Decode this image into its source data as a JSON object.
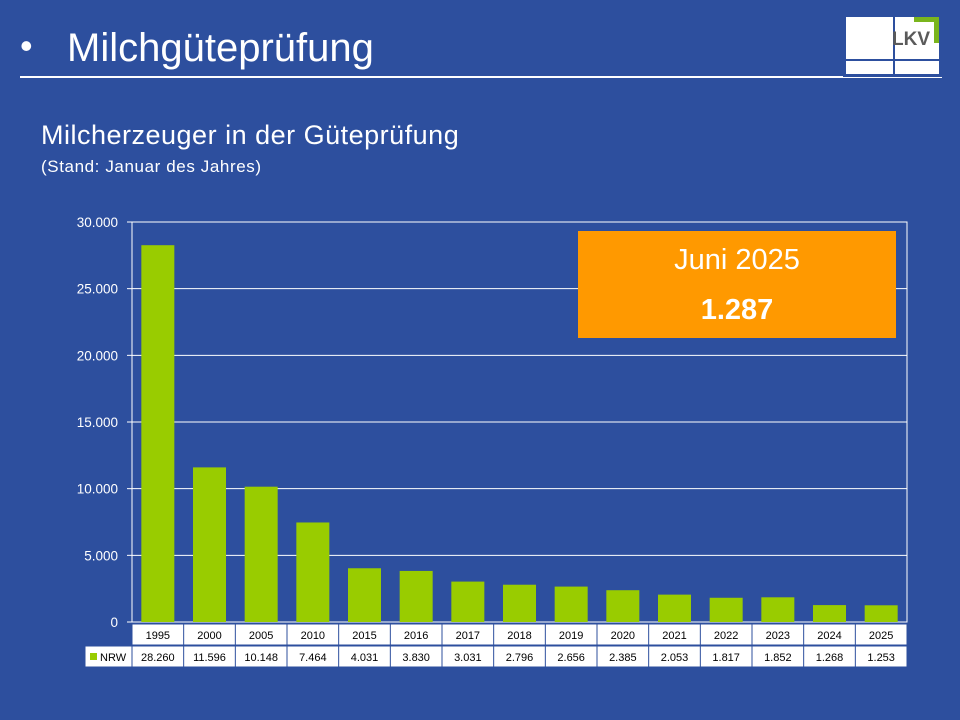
{
  "header": {
    "bullet": "•",
    "title": "Milchgüteprüfung"
  },
  "logo": {
    "text": "LKV",
    "colors": {
      "green": "#7ab51d",
      "blue": "#2d4f9e",
      "gray": "#5a5a5a"
    }
  },
  "callout": {
    "label": "Juni 2025",
    "value": "1.287",
    "color": "#ff9900"
  },
  "chart_data": {
    "type": "bar",
    "title": "Milcherzeuger in der Güteprüfung",
    "subtitle": "(Stand: Januar des Jahres)",
    "categories": [
      "1995",
      "2000",
      "2005",
      "2010",
      "2015",
      "2016",
      "2017",
      "2018",
      "2019",
      "2020",
      "2021",
      "2022",
      "2023",
      "2024",
      "2025"
    ],
    "series": [
      {
        "name": "NRW",
        "values": [
          28260,
          11596,
          10148,
          7464,
          4031,
          3830,
          3031,
          2796,
          2656,
          2385,
          2053,
          1817,
          1852,
          1268,
          1253
        ],
        "labels": [
          "28.260",
          "11.596",
          "10.148",
          "7.464",
          "4.031",
          "3.830",
          "3.031",
          "2.796",
          "2.656",
          "2.385",
          "2.053",
          "1.817",
          "1.852",
          "1.268",
          "1.253"
        ],
        "color": "#99cc00"
      }
    ],
    "ylim": [
      0,
      30000
    ],
    "yticks": [
      0,
      5000,
      10000,
      15000,
      20000,
      25000,
      30000
    ],
    "ytick_labels": [
      "0",
      "5.000",
      "10.000",
      "15.000",
      "20.000",
      "25.000",
      "30.000"
    ],
    "grid": true,
    "data_table": true,
    "xlabel": "",
    "ylabel": ""
  }
}
